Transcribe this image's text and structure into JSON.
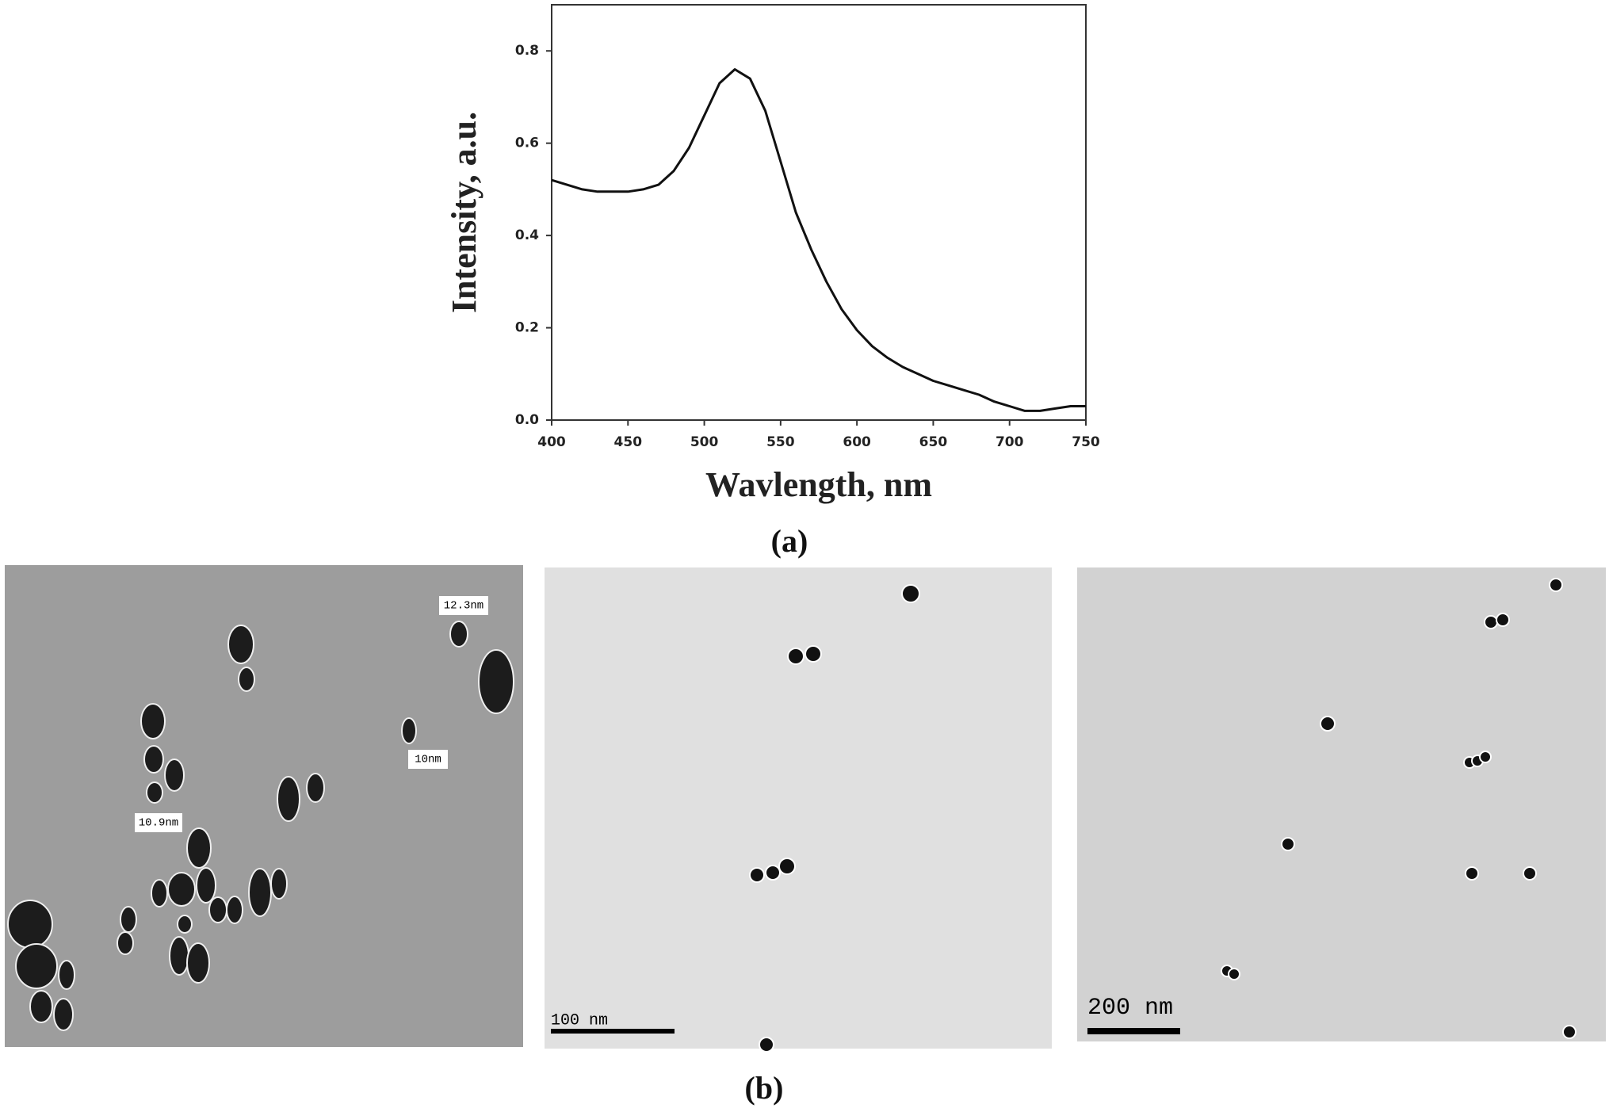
{
  "chart_data": {
    "type": "line",
    "x_label": "Wavlength, nm",
    "y_label": "Intensity, a.u.",
    "x": [
      400,
      410,
      420,
      430,
      440,
      450,
      460,
      470,
      480,
      490,
      500,
      510,
      520,
      530,
      540,
      550,
      560,
      570,
      580,
      590,
      600,
      610,
      620,
      630,
      640,
      650,
      660,
      670,
      680,
      690,
      700,
      710,
      720,
      730,
      740,
      750
    ],
    "values": [
      0.52,
      0.51,
      0.5,
      0.495,
      0.495,
      0.495,
      0.5,
      0.51,
      0.54,
      0.59,
      0.66,
      0.73,
      0.76,
      0.74,
      0.67,
      0.56,
      0.45,
      0.37,
      0.3,
      0.24,
      0.195,
      0.16,
      0.135,
      0.115,
      0.1,
      0.085,
      0.075,
      0.065,
      0.055,
      0.04,
      0.03,
      0.02,
      0.02,
      0.025,
      0.03,
      0.03
    ],
    "color": "#111111",
    "xlim": [
      400,
      750
    ],
    "ylim": [
      0,
      0.9
    ],
    "xticks": [
      400,
      450,
      500,
      550,
      600,
      650,
      700,
      750
    ],
    "yticks": [
      {
        "value": 0,
        "label": "0.0"
      },
      0.2,
      0.4,
      0.6,
      0.8
    ],
    "grid": false
  },
  "caption_a": "(a)",
  "caption_b": "(b)",
  "micrographs": [
    {
      "labels": [
        "12.3nm",
        "10nm",
        "10.9nm"
      ]
    },
    {
      "scale_bar": "100 nm"
    },
    {
      "scale_bar": "200 nm"
    }
  ]
}
